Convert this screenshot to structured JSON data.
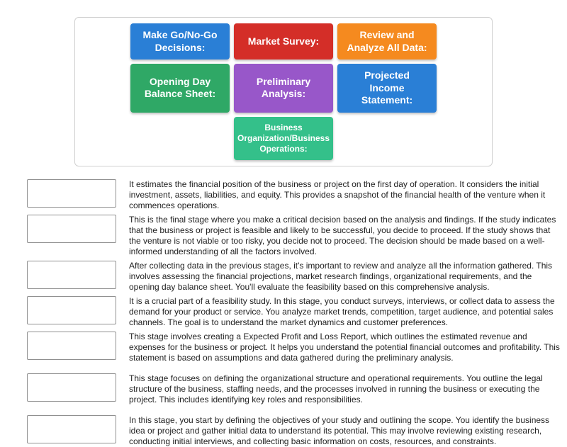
{
  "cards": [
    {
      "label": "Make Go/No-Go Decisions:",
      "bg": "#2a7fd6",
      "width": 140
    },
    {
      "label": "Market Survey:",
      "bg": "#d42e28",
      "width": 140
    },
    {
      "label": "Review and Analyze All Data:",
      "bg": "#f58a1f",
      "width": 140
    },
    {
      "label": "Opening Day Balance Sheet:",
      "bg": "#2fa866",
      "width": 140
    },
    {
      "label": "Preliminary Analysis:",
      "bg": "#9857c9",
      "width": 140
    },
    {
      "label": "Projected Income Statement:",
      "bg": "#2a7fd6",
      "width": 140
    },
    {
      "label": "Business Organization/Business Operations:",
      "bg": "#34c08a",
      "width": 140,
      "fontsize": 12
    }
  ],
  "rows": [
    {
      "spaced": false,
      "text": "It estimates the financial position of the business or project on the first day of operation. It considers the initial investment, assets, liabilities, and equity. This provides a snapshot of the financial health of the venture when it commences operations."
    },
    {
      "spaced": false,
      "text": "This is the final stage where you make a critical decision based on the analysis and findings. If the study indicates that the business or project is feasible and likely to be successful, you decide to proceed. If the study shows that the venture is not viable or too risky, you decide not to proceed. The decision should be made based on a well-informed understanding of all the factors involved."
    },
    {
      "spaced": false,
      "text": "After collecting data in the previous stages, it's important to review and analyze all the information gathered. This involves assessing the financial projections, market research findings, organizational requirements, and the opening day balance sheet. You'll evaluate the feasibility based on this comprehensive analysis."
    },
    {
      "spaced": false,
      "text": "It is a crucial part of a feasibility study. In this stage, you conduct surveys, interviews, or collect data to assess the demand for your product or service. You analyze market trends, competition, target audience, and potential sales channels. The goal is to understand the market dynamics and customer preferences."
    },
    {
      "spaced": false,
      "text": "This stage involves creating a Expected Profit and Loss Report, which outlines the estimated revenue and expenses for the business or project. It helps you understand the potential financial outcomes and profitability. This statement is based on assumptions and data gathered during the preliminary analysis."
    },
    {
      "spaced": true,
      "text": "This stage focuses on defining the organizational structure and operational requirements. You outline the legal structure of the business, staffing needs, and the processes involved in running the business or executing the project. This includes identifying key roles and responsibilities."
    },
    {
      "spaced": true,
      "text": "In this stage, you start by defining the objectives of your study and outlining the scope. You identify the business idea or project and gather initial data to understand its potential. This may involve reviewing existing research, conducting initial interviews, and collecting basic information on costs, resources, and constraints."
    }
  ],
  "style": {
    "body_bg": "#ffffff",
    "card_area_border": "#d0d0d0",
    "dropzone_border": "#909090",
    "desc_color": "#222222",
    "desc_fontsize": 12,
    "card_fontsize_default": 14
  }
}
